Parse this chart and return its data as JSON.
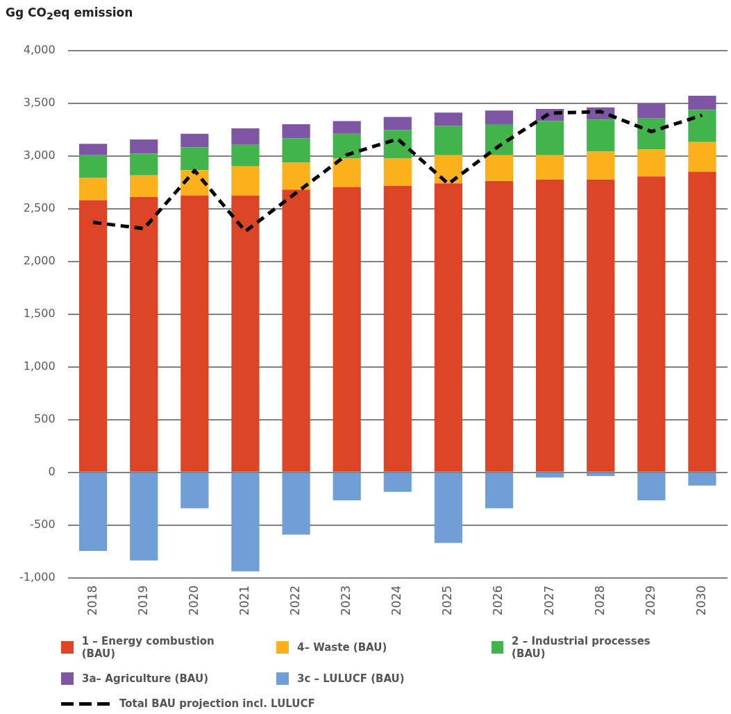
{
  "chart_data": {
    "type": "bar",
    "ylabel": "Gg CO$_{2}$eq emission",
    "stacked": true,
    "categories": [
      "2018",
      "2019",
      "2020",
      "2021",
      "2022",
      "2023",
      "2024",
      "2025",
      "2026",
      "2027",
      "2028",
      "2029",
      "2030"
    ],
    "series": [
      {
        "name": "1 – Energy combustion (BAU)",
        "color": "#dd4426",
        "values": [
          2580,
          2610,
          2625,
          2625,
          2680,
          2705,
          2715,
          2740,
          2760,
          2775,
          2775,
          2805,
          2850
        ]
      },
      {
        "name": "4– Waste (BAU)",
        "color": "#fbb11b",
        "values": [
          210,
          205,
          240,
          275,
          255,
          270,
          260,
          265,
          245,
          230,
          265,
          255,
          280
        ]
      },
      {
        "name": "2 – Industrial processes (BAU)",
        "color": "#41b44b",
        "values": [
          215,
          205,
          215,
          205,
          230,
          235,
          270,
          280,
          295,
          325,
          305,
          295,
          305
        ]
      },
      {
        "name": "3a– Agriculture (BAU)",
        "color": "#7f56a5",
        "values": [
          110,
          135,
          130,
          155,
          135,
          120,
          125,
          125,
          130,
          115,
          115,
          140,
          135
        ]
      },
      {
        "name": "3c – LULUCF (BAU)",
        "color": "#6f9fd6",
        "values": [
          -745,
          -835,
          -340,
          -940,
          -590,
          -265,
          -185,
          -670,
          -340,
          -50,
          -35,
          -265,
          -125
        ]
      },
      {
        "name": "Total BAU projection incl. LULUCF",
        "type": "line",
        "color": "#000000",
        "line_style": "dashed",
        "marker": "none",
        "values": [
          2370,
          2310,
          2860,
          2285,
          2650,
          3010,
          3160,
          2735,
          3095,
          3405,
          3420,
          3230,
          3385
        ]
      }
    ],
    "ylim": [
      -1000,
      4000
    ],
    "yticks": [
      {
        "value": -1000,
        "label": "-1,000"
      },
      {
        "value": -500,
        "label": "-500"
      },
      {
        "value": 0,
        "label": "0"
      },
      {
        "value": 500,
        "label": "500"
      },
      {
        "value": 1000,
        "label": "1,000"
      },
      {
        "value": 1500,
        "label": "1,500"
      },
      {
        "value": 2000,
        "label": "2,000"
      },
      {
        "value": 2500,
        "label": "2,500"
      },
      {
        "value": 3000,
        "label": "3,000"
      },
      {
        "value": 3500,
        "label": "3,500"
      },
      {
        "value": 4000,
        "label": "4,000"
      }
    ],
    "grid": "y",
    "legend": "bottom"
  }
}
